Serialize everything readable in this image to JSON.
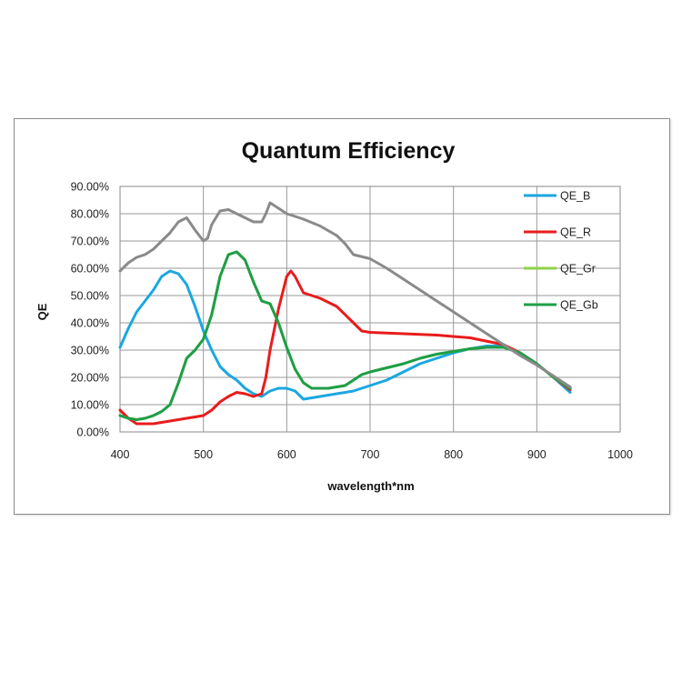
{
  "chart_data": {
    "type": "line",
    "title": "Quantum Efficiency",
    "xlabel": "wavelength*nm",
    "ylabel": "QE",
    "xlim": [
      400,
      1000
    ],
    "ylim": [
      0,
      0.9
    ],
    "x_ticks": [
      400,
      500,
      600,
      700,
      800,
      900,
      1000
    ],
    "x_tick_labels": [
      "400",
      "500",
      "600",
      "700",
      "800",
      "900",
      "1000"
    ],
    "y_ticks": [
      0,
      0.1,
      0.2,
      0.3,
      0.4,
      0.5,
      0.6,
      0.7,
      0.8,
      0.9
    ],
    "y_tick_labels": [
      "0.00%",
      "10.00%",
      "20.00%",
      "30.00%",
      "40.00%",
      "50.00%",
      "60.00%",
      "70.00%",
      "80.00%",
      "90.00%"
    ],
    "grid": true,
    "legend_position": "right",
    "series": [
      {
        "name": "QE_B",
        "color": "#1ba7e0",
        "points": [
          [
            400,
            0.31
          ],
          [
            410,
            0.38
          ],
          [
            420,
            0.44
          ],
          [
            430,
            0.48
          ],
          [
            440,
            0.52
          ],
          [
            450,
            0.57
          ],
          [
            460,
            0.59
          ],
          [
            470,
            0.58
          ],
          [
            480,
            0.54
          ],
          [
            490,
            0.46
          ],
          [
            500,
            0.37
          ],
          [
            510,
            0.3
          ],
          [
            520,
            0.24
          ],
          [
            530,
            0.21
          ],
          [
            540,
            0.19
          ],
          [
            550,
            0.16
          ],
          [
            560,
            0.14
          ],
          [
            570,
            0.13
          ],
          [
            580,
            0.15
          ],
          [
            590,
            0.16
          ],
          [
            600,
            0.16
          ],
          [
            610,
            0.15
          ],
          [
            620,
            0.12
          ],
          [
            640,
            0.13
          ],
          [
            660,
            0.14
          ],
          [
            680,
            0.15
          ],
          [
            700,
            0.17
          ],
          [
            720,
            0.19
          ],
          [
            740,
            0.22
          ],
          [
            760,
            0.25
          ],
          [
            780,
            0.27
          ],
          [
            800,
            0.29
          ],
          [
            820,
            0.305
          ],
          [
            840,
            0.315
          ],
          [
            860,
            0.315
          ],
          [
            880,
            0.29
          ],
          [
            900,
            0.25
          ],
          [
            920,
            0.2
          ],
          [
            940,
            0.145
          ]
        ]
      },
      {
        "name": "QE_R",
        "color": "#e81c1c",
        "points": [
          [
            400,
            0.08
          ],
          [
            410,
            0.05
          ],
          [
            420,
            0.03
          ],
          [
            430,
            0.03
          ],
          [
            440,
            0.03
          ],
          [
            460,
            0.04
          ],
          [
            480,
            0.05
          ],
          [
            500,
            0.06
          ],
          [
            510,
            0.08
          ],
          [
            520,
            0.11
          ],
          [
            530,
            0.13
          ],
          [
            540,
            0.145
          ],
          [
            550,
            0.14
          ],
          [
            560,
            0.13
          ],
          [
            570,
            0.14
          ],
          [
            575,
            0.2
          ],
          [
            580,
            0.3
          ],
          [
            590,
            0.45
          ],
          [
            600,
            0.57
          ],
          [
            605,
            0.59
          ],
          [
            610,
            0.57
          ],
          [
            620,
            0.51
          ],
          [
            640,
            0.49
          ],
          [
            660,
            0.46
          ],
          [
            680,
            0.4
          ],
          [
            690,
            0.37
          ],
          [
            700,
            0.365
          ],
          [
            740,
            0.36
          ],
          [
            780,
            0.355
          ],
          [
            820,
            0.345
          ],
          [
            860,
            0.32
          ],
          [
            880,
            0.29
          ],
          [
            900,
            0.25
          ],
          [
            920,
            0.2
          ],
          [
            940,
            0.155
          ]
        ]
      },
      {
        "name": "QE_Gr",
        "color": "#8ed24a",
        "points": [
          [
            400,
            0.06
          ],
          [
            410,
            0.05
          ],
          [
            420,
            0.045
          ],
          [
            430,
            0.05
          ],
          [
            440,
            0.06
          ],
          [
            450,
            0.075
          ],
          [
            460,
            0.1
          ],
          [
            470,
            0.18
          ],
          [
            480,
            0.27
          ],
          [
            490,
            0.3
          ],
          [
            500,
            0.34
          ],
          [
            510,
            0.43
          ],
          [
            520,
            0.57
          ],
          [
            530,
            0.65
          ],
          [
            540,
            0.66
          ],
          [
            550,
            0.63
          ],
          [
            560,
            0.55
          ],
          [
            570,
            0.48
          ],
          [
            580,
            0.47
          ],
          [
            590,
            0.4
          ],
          [
            600,
            0.31
          ],
          [
            610,
            0.23
          ],
          [
            620,
            0.18
          ],
          [
            630,
            0.16
          ],
          [
            650,
            0.16
          ],
          [
            670,
            0.17
          ],
          [
            680,
            0.19
          ],
          [
            690,
            0.21
          ],
          [
            700,
            0.22
          ],
          [
            720,
            0.235
          ],
          [
            740,
            0.25
          ],
          [
            760,
            0.27
          ],
          [
            780,
            0.285
          ],
          [
            800,
            0.295
          ],
          [
            820,
            0.305
          ],
          [
            840,
            0.31
          ],
          [
            860,
            0.31
          ],
          [
            880,
            0.29
          ],
          [
            900,
            0.25
          ],
          [
            920,
            0.2
          ],
          [
            940,
            0.16
          ]
        ]
      },
      {
        "name": "QE_Gb",
        "color": "#1f9e48",
        "points": [
          [
            400,
            0.06
          ],
          [
            410,
            0.05
          ],
          [
            420,
            0.045
          ],
          [
            430,
            0.05
          ],
          [
            440,
            0.06
          ],
          [
            450,
            0.075
          ],
          [
            460,
            0.1
          ],
          [
            470,
            0.18
          ],
          [
            480,
            0.27
          ],
          [
            490,
            0.3
          ],
          [
            500,
            0.34
          ],
          [
            510,
            0.43
          ],
          [
            520,
            0.57
          ],
          [
            530,
            0.65
          ],
          [
            540,
            0.66
          ],
          [
            550,
            0.63
          ],
          [
            560,
            0.55
          ],
          [
            570,
            0.48
          ],
          [
            580,
            0.47
          ],
          [
            590,
            0.4
          ],
          [
            600,
            0.31
          ],
          [
            610,
            0.23
          ],
          [
            620,
            0.18
          ],
          [
            630,
            0.16
          ],
          [
            650,
            0.16
          ],
          [
            670,
            0.17
          ],
          [
            680,
            0.19
          ],
          [
            690,
            0.21
          ],
          [
            700,
            0.22
          ],
          [
            720,
            0.235
          ],
          [
            740,
            0.25
          ],
          [
            760,
            0.27
          ],
          [
            780,
            0.285
          ],
          [
            800,
            0.295
          ],
          [
            820,
            0.305
          ],
          [
            840,
            0.31
          ],
          [
            860,
            0.31
          ],
          [
            880,
            0.29
          ],
          [
            900,
            0.25
          ],
          [
            920,
            0.2
          ],
          [
            940,
            0.16
          ]
        ]
      },
      {
        "color": "#8a8a8a",
        "points": [
          [
            400,
            0.59
          ],
          [
            410,
            0.62
          ],
          [
            420,
            0.64
          ],
          [
            430,
            0.65
          ],
          [
            440,
            0.67
          ],
          [
            450,
            0.7
          ],
          [
            460,
            0.73
          ],
          [
            470,
            0.77
          ],
          [
            480,
            0.785
          ],
          [
            490,
            0.74
          ],
          [
            500,
            0.7
          ],
          [
            505,
            0.71
          ],
          [
            510,
            0.76
          ],
          [
            520,
            0.81
          ],
          [
            530,
            0.815
          ],
          [
            540,
            0.8
          ],
          [
            550,
            0.785
          ],
          [
            560,
            0.77
          ],
          [
            570,
            0.77
          ],
          [
            575,
            0.8
          ],
          [
            580,
            0.84
          ],
          [
            590,
            0.82
          ],
          [
            600,
            0.8
          ],
          [
            620,
            0.78
          ],
          [
            640,
            0.755
          ],
          [
            660,
            0.72
          ],
          [
            670,
            0.69
          ],
          [
            680,
            0.65
          ],
          [
            700,
            0.635
          ],
          [
            720,
            0.6
          ],
          [
            740,
            0.56
          ],
          [
            760,
            0.52
          ],
          [
            780,
            0.48
          ],
          [
            800,
            0.44
          ],
          [
            820,
            0.4
          ],
          [
            840,
            0.36
          ],
          [
            860,
            0.32
          ],
          [
            880,
            0.28
          ],
          [
            900,
            0.245
          ],
          [
            920,
            0.205
          ],
          [
            940,
            0.165
          ]
        ]
      }
    ]
  }
}
